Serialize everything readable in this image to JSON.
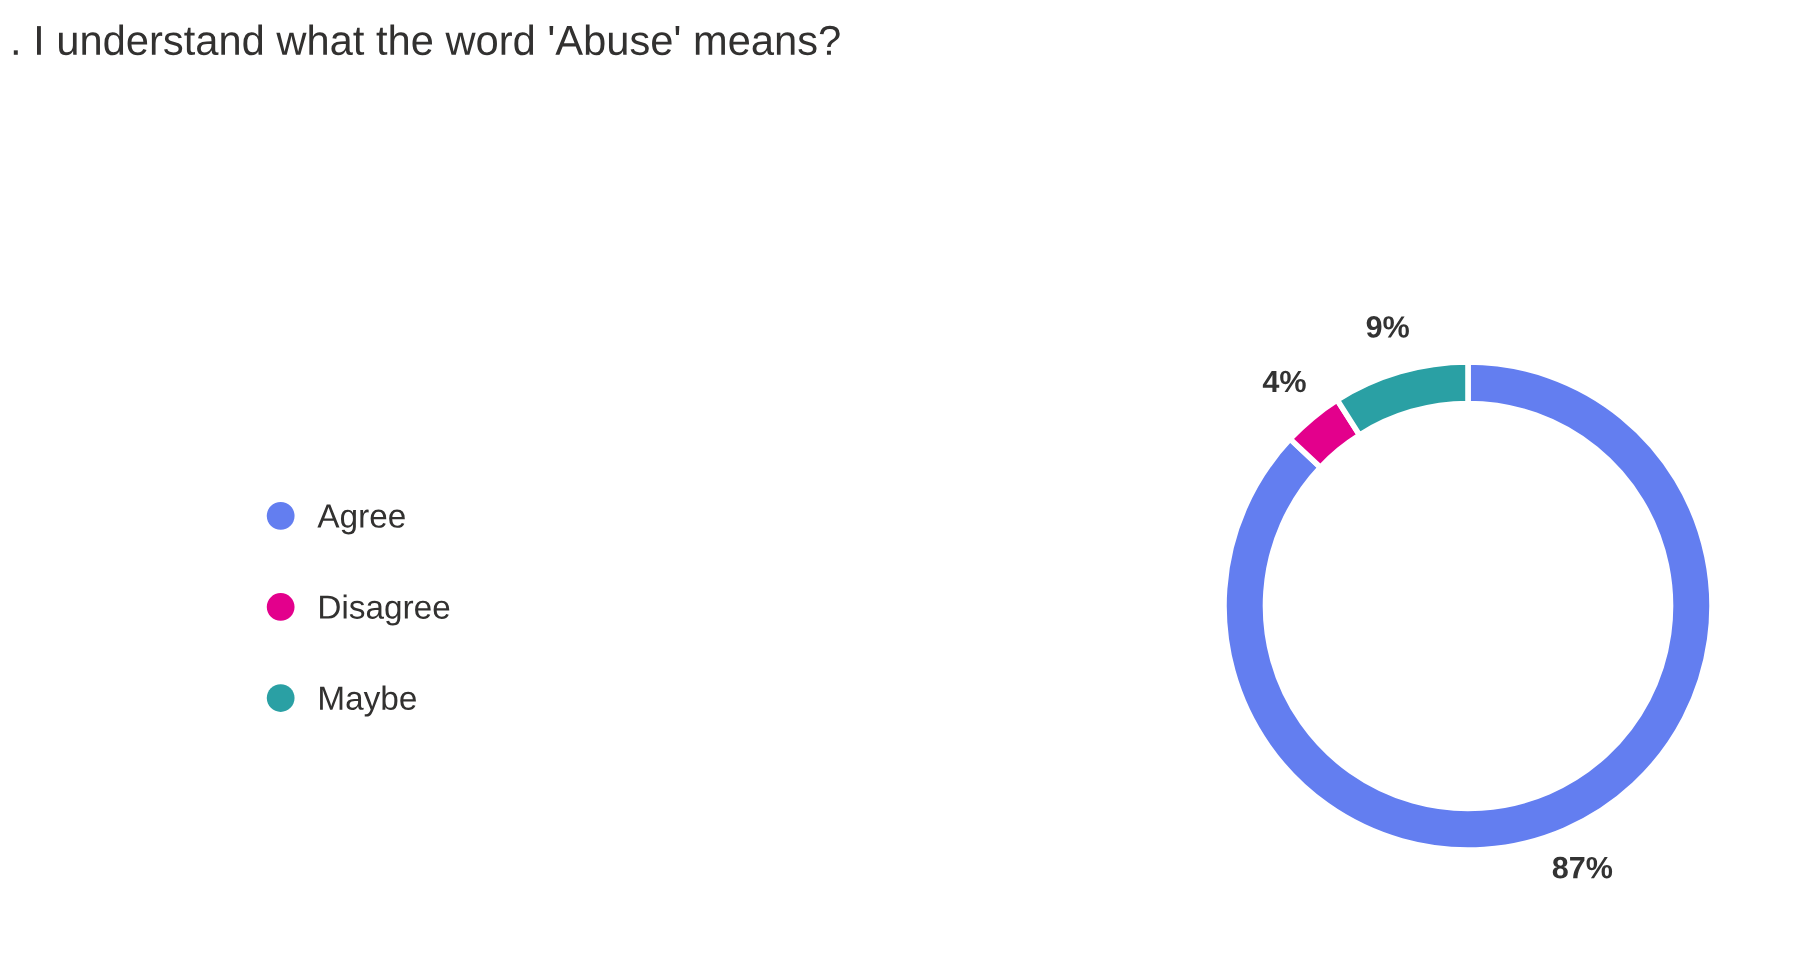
{
  "chart_data": {
    "type": "donut",
    "title": ". I understand what the word 'Abuse' means?",
    "categories": [
      "Agree",
      "Disagree",
      "Maybe"
    ],
    "values": [
      87,
      4,
      9
    ],
    "colors": [
      "#637ef0",
      "#e3008c",
      "#2aa0a4"
    ],
    "value_labels": [
      "87%",
      "4%",
      "9%"
    ],
    "legend": "left"
  }
}
